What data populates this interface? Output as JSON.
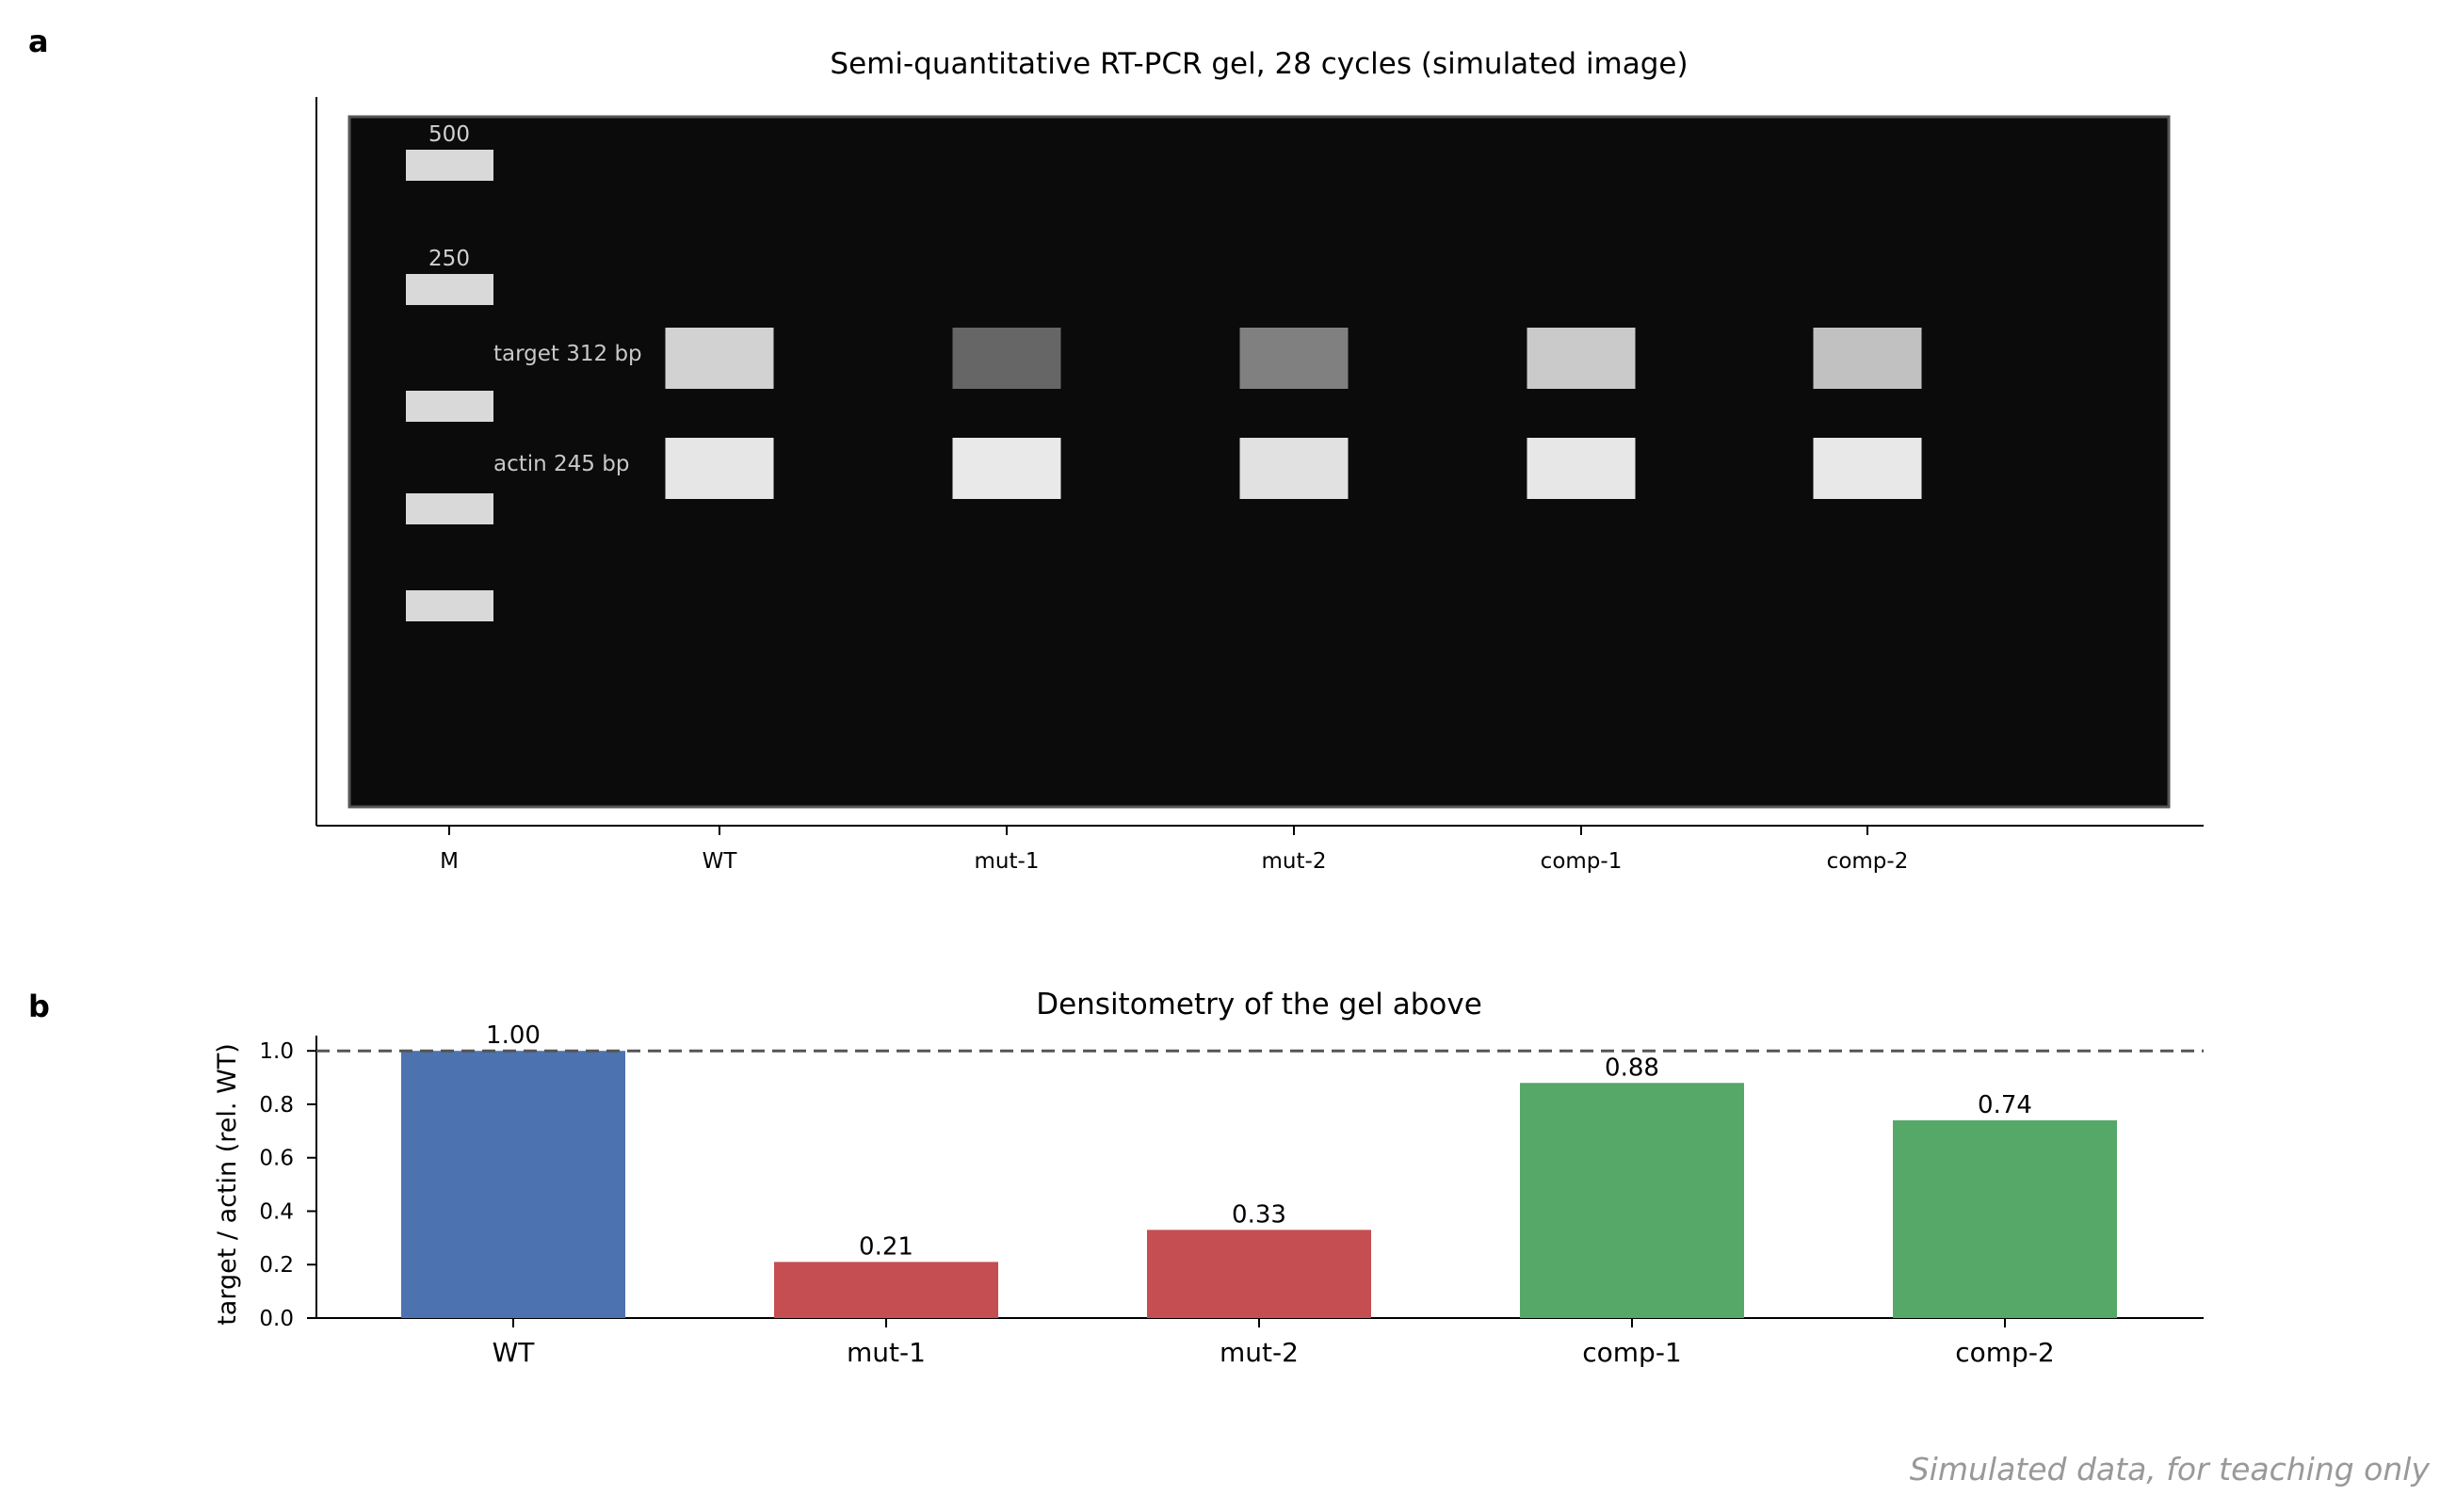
{
  "panel_a": {
    "letter": "a",
    "title": "Semi-quantitative RT-PCR gel, 28 cycles (simulated image)",
    "lanes": [
      "M",
      "WT",
      "mut-1",
      "mut-2",
      "comp-1",
      "comp-2"
    ],
    "ladder_labels": [
      "500",
      "250"
    ],
    "band_labels": {
      "target": "target 312 bp",
      "actin": "actin 245 bp"
    },
    "target_band_gray": [
      210,
      102,
      128,
      202,
      193
    ],
    "actin_band_gray": [
      230,
      233,
      225,
      231,
      232
    ]
  },
  "panel_b": {
    "letter": "b",
    "footnote": "Simulated data, for teaching only"
  },
  "chart_data": [
    {
      "type": "heatmap",
      "title": "Semi-quantitative RT-PCR gel, 28 cycles (simulated image)",
      "categories": [
        "M",
        "WT",
        "mut-1",
        "mut-2",
        "comp-1",
        "comp-2"
      ],
      "ladder": [
        "500",
        "250"
      ],
      "bands": [
        {
          "name": "target 312 bp",
          "lanes": [
            "WT",
            "mut-1",
            "mut-2",
            "comp-1",
            "comp-2"
          ],
          "gray": [
            210,
            102,
            128,
            202,
            193
          ]
        },
        {
          "name": "actin 245 bp",
          "lanes": [
            "WT",
            "mut-1",
            "mut-2",
            "comp-1",
            "comp-2"
          ],
          "gray": [
            230,
            233,
            225,
            231,
            232
          ]
        }
      ]
    },
    {
      "type": "bar",
      "title": "Densitometry of the gel above",
      "categories": [
        "WT",
        "mut-1",
        "mut-2",
        "comp-1",
        "comp-2"
      ],
      "values": [
        1.0,
        0.21,
        0.33,
        0.88,
        0.74
      ],
      "value_labels": [
        "1.00",
        "0.21",
        "0.33",
        "0.88",
        "0.74"
      ],
      "colors": [
        "#4c72b0",
        "#c44e52",
        "#c44e52",
        "#55a868",
        "#55a868"
      ],
      "ylabel": "target / actin (rel. WT)",
      "xlabel": "",
      "ylim": [
        0,
        1.05
      ],
      "yticks": [
        "0.0",
        "0.2",
        "0.4",
        "0.6",
        "0.8",
        "1.0"
      ],
      "reference_line": 1.0,
      "grid": false
    }
  ]
}
